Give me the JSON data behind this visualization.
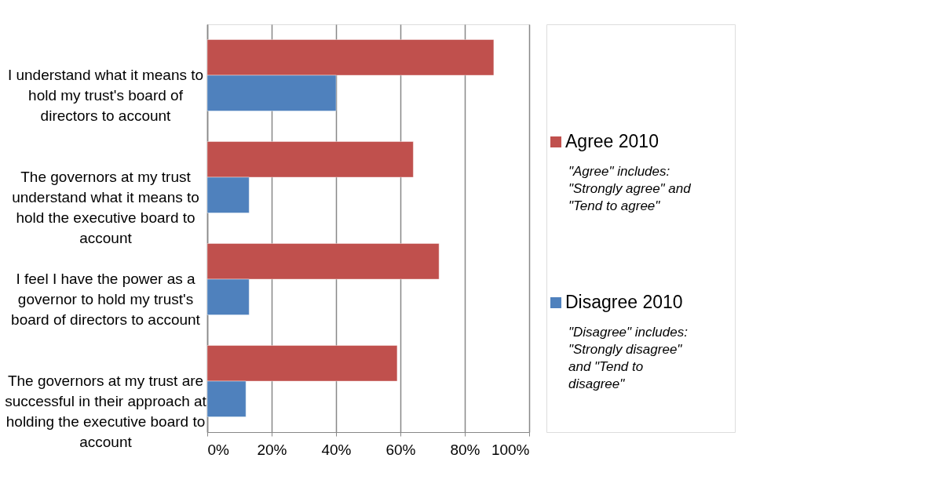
{
  "chart_data": {
    "type": "bar",
    "orientation": "horizontal",
    "categories": [
      "I understand what it means to hold my trust's board of directors to account",
      "The governors at my trust understand what it means to hold the executive board to account",
      "I feel I have the power as a governor to hold my trust's board of directors to account",
      "The governors at my trust are successful in their approach at holding the executive board to account"
    ],
    "series": [
      {
        "name": "Agree 2010",
        "color": "#c0504d",
        "values": [
          89,
          64,
          72,
          59
        ]
      },
      {
        "name": "Disagree 2010",
        "color": "#4f81bd",
        "values": [
          40,
          13,
          13,
          12
        ]
      }
    ],
    "xlim": [
      0,
      100
    ],
    "xticks": [
      {
        "value": 0,
        "label": "0%"
      },
      {
        "value": 20,
        "label": "20%"
      },
      {
        "value": 40,
        "label": "40%"
      },
      {
        "value": 60,
        "label": "60%"
      },
      {
        "value": 80,
        "label": "80%"
      },
      {
        "value": 100,
        "label": "100%"
      }
    ],
    "grid": "x",
    "legend": "right",
    "annotations": [
      "\"Agree\" includes: \"Strongly agree\" and \"Tend to agree\"",
      "\"Disagree\" includes: \"Strongly disagree\" and \"Tend to disagree\""
    ]
  }
}
